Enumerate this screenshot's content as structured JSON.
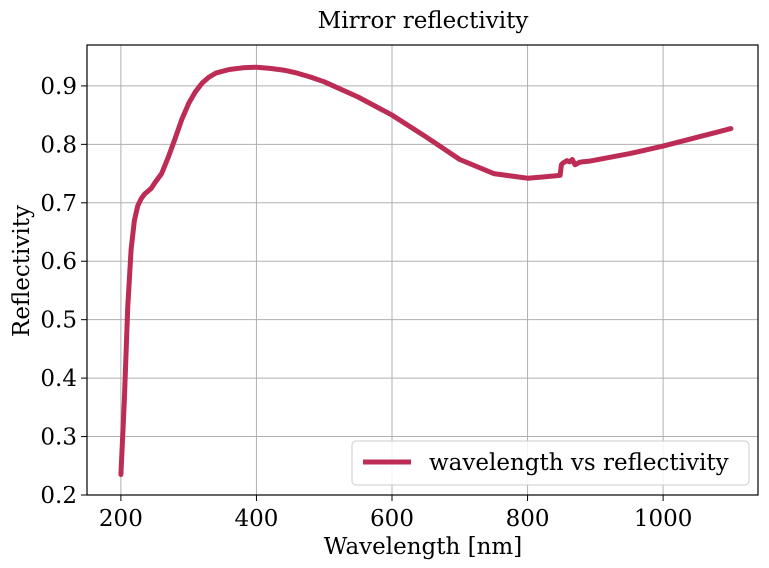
{
  "chart_data": {
    "type": "line",
    "title": "Mirror reflectivity",
    "xlabel": "Wavelength [nm]",
    "ylabel": "Reflectivity",
    "xlim": [
      150,
      1140
    ],
    "ylim": [
      0.2,
      0.97
    ],
    "xticks": [
      200,
      400,
      600,
      800,
      1000
    ],
    "yticks": [
      0.2,
      0.3,
      0.4,
      0.5,
      0.6,
      0.7,
      0.8,
      0.9
    ],
    "xtick_labels": [
      "200",
      "400",
      "600",
      "800",
      "1000"
    ],
    "ytick_labels": [
      "0.2",
      "0.3",
      "0.4",
      "0.5",
      "0.6",
      "0.7",
      "0.8",
      "0.9"
    ],
    "grid": true,
    "legend": {
      "placement": "lower-right",
      "entries": [
        "wavelength vs reflectivity"
      ]
    },
    "series": [
      {
        "name": "wavelength vs reflectivity",
        "color": "#bc2c55",
        "x": [
          200,
          205,
          210,
          215,
          220,
          225,
          230,
          235,
          240,
          245,
          250,
          260,
          270,
          280,
          290,
          300,
          310,
          320,
          330,
          340,
          360,
          380,
          400,
          420,
          440,
          460,
          480,
          500,
          550,
          600,
          650,
          700,
          750,
          800,
          820,
          840,
          848,
          850,
          852,
          858,
          862,
          866,
          870,
          876,
          880,
          890,
          900,
          950,
          1000,
          1050,
          1100
        ],
        "y": [
          0.235,
          0.36,
          0.52,
          0.62,
          0.67,
          0.695,
          0.707,
          0.715,
          0.72,
          0.725,
          0.734,
          0.75,
          0.778,
          0.81,
          0.843,
          0.87,
          0.89,
          0.905,
          0.915,
          0.922,
          0.928,
          0.931,
          0.932,
          0.93,
          0.927,
          0.922,
          0.915,
          0.907,
          0.881,
          0.85,
          0.813,
          0.774,
          0.75,
          0.742,
          0.744,
          0.746,
          0.747,
          0.765,
          0.768,
          0.772,
          0.77,
          0.774,
          0.765,
          0.769,
          0.77,
          0.771,
          0.773,
          0.784,
          0.797,
          0.812,
          0.827
        ]
      }
    ]
  }
}
